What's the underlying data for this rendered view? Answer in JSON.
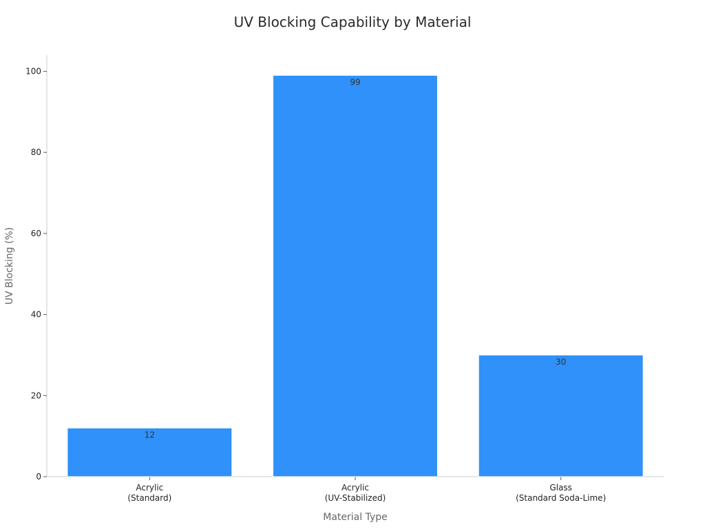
{
  "chart_data": {
    "type": "bar",
    "title": "UV Blocking Capability by Material",
    "xlabel": "Material Type",
    "ylabel": "UV Blocking (%)",
    "categories": [
      [
        "Acrylic",
        "(Standard)"
      ],
      [
        "Acrylic",
        "(UV-Stabilized)"
      ],
      [
        "Glass",
        "(Standard Soda-Lime)"
      ]
    ],
    "values": [
      12,
      99,
      30
    ],
    "ylim": [
      0,
      104
    ],
    "yticks": [
      0,
      20,
      40,
      60,
      80,
      100
    ],
    "bar_color": "#2f91f9",
    "grid": false,
    "legend": "none"
  }
}
